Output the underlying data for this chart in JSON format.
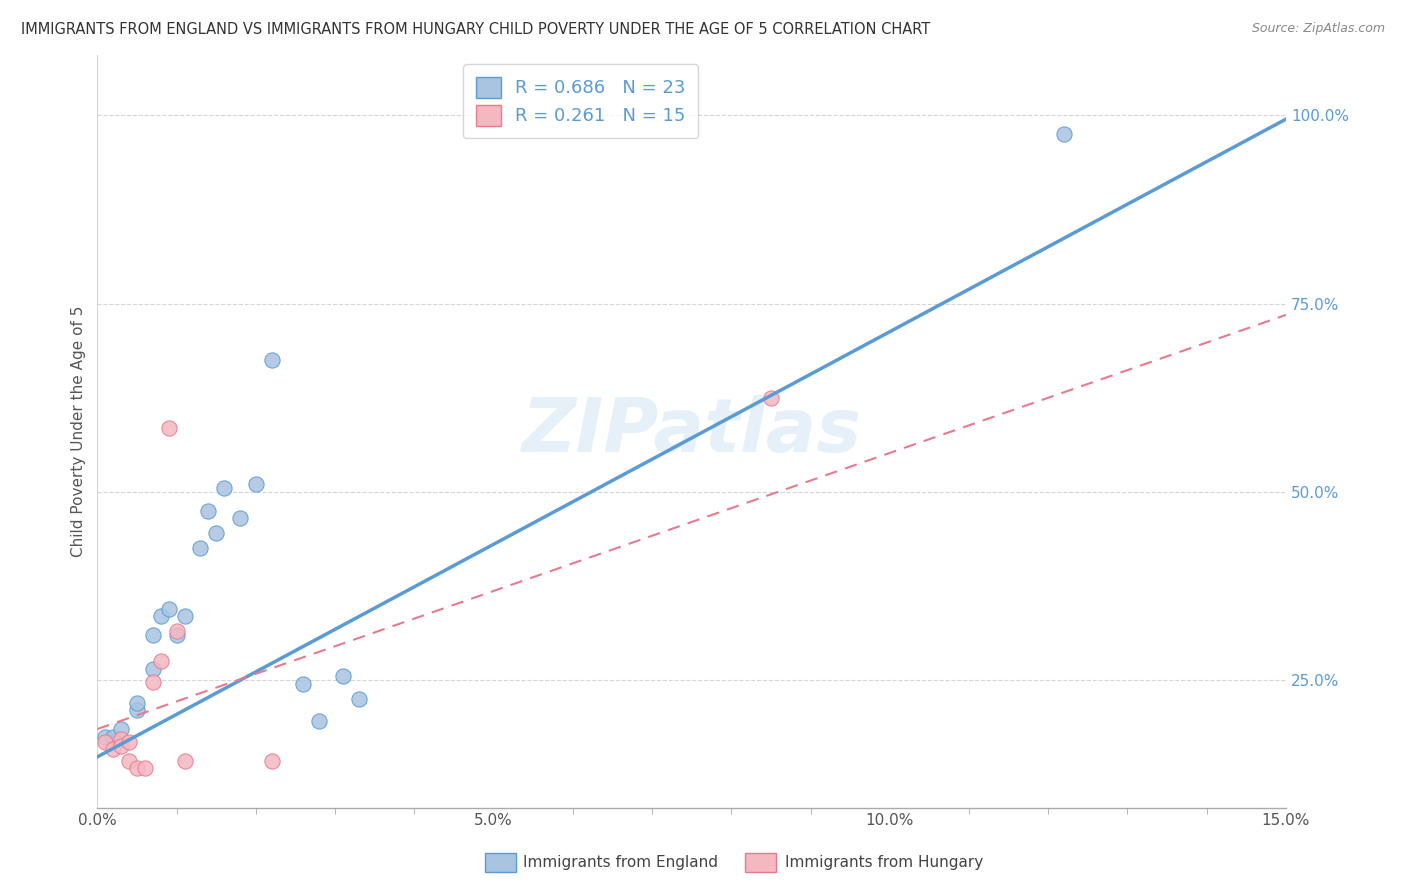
{
  "title": "IMMIGRANTS FROM ENGLAND VS IMMIGRANTS FROM HUNGARY CHILD POVERTY UNDER THE AGE OF 5 CORRELATION CHART",
  "source": "Source: ZipAtlas.com",
  "ylabel": "Child Poverty Under the Age of 5",
  "xlim": [
    0.0,
    0.15
  ],
  "ylim": [
    0.08,
    1.08
  ],
  "xtick_labels": [
    "0.0%",
    "",
    "",
    "",
    "",
    "5.0%",
    "",
    "",
    "",
    "",
    "10.0%",
    "",
    "",
    "",
    "",
    "15.0%"
  ],
  "xtick_vals": [
    0.0,
    0.01,
    0.02,
    0.03,
    0.04,
    0.05,
    0.06,
    0.07,
    0.08,
    0.09,
    0.1,
    0.11,
    0.12,
    0.13,
    0.14,
    0.15
  ],
  "ytick_labels": [
    "25.0%",
    "50.0%",
    "75.0%",
    "100.0%"
  ],
  "ytick_vals": [
    0.25,
    0.5,
    0.75,
    1.0
  ],
  "england_color": "#a8c4e0",
  "england_color_dark": "#5b9bd5",
  "hungary_color": "#f4b8c1",
  "hungary_color_dark": "#e87a8e",
  "england_R": 0.686,
  "england_N": 23,
  "hungary_R": 0.261,
  "hungary_N": 15,
  "england_line": [
    [
      0.0,
      0.148
    ],
    [
      0.15,
      0.995
    ]
  ],
  "hungary_line": [
    [
      0.0,
      0.185
    ],
    [
      0.15,
      0.735
    ]
  ],
  "england_scatter": [
    [
      0.001,
      0.175
    ],
    [
      0.002,
      0.175
    ],
    [
      0.003,
      0.185
    ],
    [
      0.005,
      0.21
    ],
    [
      0.005,
      0.22
    ],
    [
      0.007,
      0.265
    ],
    [
      0.007,
      0.31
    ],
    [
      0.008,
      0.335
    ],
    [
      0.009,
      0.345
    ],
    [
      0.01,
      0.31
    ],
    [
      0.011,
      0.335
    ],
    [
      0.013,
      0.425
    ],
    [
      0.014,
      0.475
    ],
    [
      0.015,
      0.445
    ],
    [
      0.016,
      0.505
    ],
    [
      0.018,
      0.465
    ],
    [
      0.02,
      0.51
    ],
    [
      0.022,
      0.675
    ],
    [
      0.026,
      0.245
    ],
    [
      0.028,
      0.195
    ],
    [
      0.031,
      0.255
    ],
    [
      0.033,
      0.225
    ],
    [
      0.122,
      0.975
    ]
  ],
  "hungary_scatter": [
    [
      0.001,
      0.168
    ],
    [
      0.002,
      0.158
    ],
    [
      0.003,
      0.172
    ],
    [
      0.003,
      0.163
    ],
    [
      0.004,
      0.168
    ],
    [
      0.004,
      0.143
    ],
    [
      0.005,
      0.133
    ],
    [
      0.006,
      0.133
    ],
    [
      0.007,
      0.248
    ],
    [
      0.008,
      0.275
    ],
    [
      0.009,
      0.585
    ],
    [
      0.01,
      0.315
    ],
    [
      0.011,
      0.143
    ],
    [
      0.022,
      0.143
    ],
    [
      0.085,
      0.625
    ]
  ],
  "dot_size": 120,
  "watermark": "ZIPatlas",
  "legend_label_england": "Immigrants from England",
  "legend_label_hungary": "Immigrants from Hungary",
  "background_color": "#ffffff",
  "grid_color": "#d5d5d5"
}
